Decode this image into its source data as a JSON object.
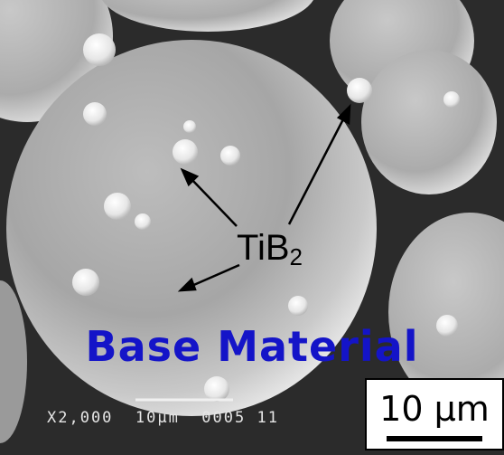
{
  "image": {
    "subject": "SEM micrograph of spherical powder particles",
    "annotation_label": "TiB",
    "annotation_subscript": "2",
    "caption": "Base Material",
    "caption_color": "#1414c8",
    "scale_label": "10 µm",
    "sem_footer": "X2,000  10µm  0005 11"
  }
}
